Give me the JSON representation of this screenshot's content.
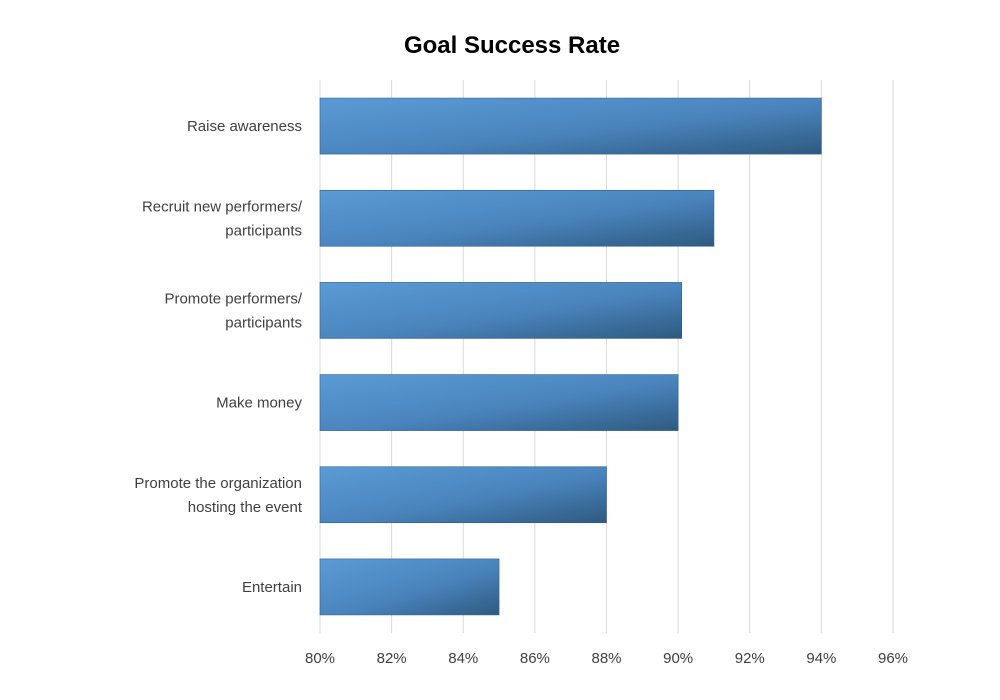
{
  "chart_data": {
    "type": "bar",
    "orientation": "horizontal",
    "title": "Goal Success Rate",
    "xlabel": "",
    "ylabel": "",
    "categories": [
      [
        "Raise awareness"
      ],
      [
        "Recruit new performers/",
        "participants"
      ],
      [
        "Promote performers/",
        "participants"
      ],
      [
        "Make money"
      ],
      [
        "Promote the organization",
        "hosting the event"
      ],
      [
        "Entertain"
      ]
    ],
    "values": [
      94,
      91,
      90.1,
      90,
      88,
      85
    ],
    "xlim": [
      80,
      96
    ],
    "x_ticks": [
      "80%",
      "82%",
      "84%",
      "86%",
      "88%",
      "90%",
      "92%",
      "94%",
      "96%"
    ],
    "grid": true,
    "legend": "none",
    "colors": {
      "bar_light": "#5b9bd5",
      "bar_dark": "#2e5a80",
      "grid": "#d9d9d9",
      "text": "#404040"
    }
  }
}
